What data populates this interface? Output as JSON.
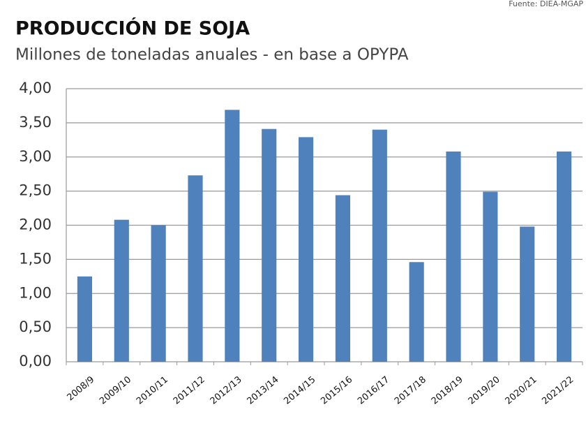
{
  "chart_data": {
    "type": "bar",
    "title": "PRODUCCIÓN DE SOJA",
    "subtitle": "Millones de toneladas anuales - en base a OPYPA",
    "source": "Fuente: DIEA-MGAP",
    "categories": [
      "2008/9",
      "2009/10",
      "2010/11",
      "2011/12",
      "2012/13",
      "2013/14",
      "2014/15",
      "2015/16",
      "2016/17",
      "2017/18",
      "2018/19",
      "2019/20",
      "2020/21",
      "2021/22"
    ],
    "values": [
      1.25,
      2.08,
      2.0,
      2.73,
      3.69,
      3.41,
      3.29,
      2.44,
      3.4,
      1.46,
      3.08,
      2.49,
      1.98,
      3.08
    ],
    "color": "#4f81bd",
    "ylim": [
      0,
      4
    ],
    "yticks": [
      {
        "value": 0,
        "label": "0,00"
      },
      {
        "value": 0.5,
        "label": "0,50"
      },
      {
        "value": 1,
        "label": "1,00"
      },
      {
        "value": 1.5,
        "label": "1,50"
      },
      {
        "value": 2,
        "label": "2,00"
      },
      {
        "value": 2.5,
        "label": "2,50"
      },
      {
        "value": 3,
        "label": "3,00"
      },
      {
        "value": 3.5,
        "label": "3,50"
      },
      {
        "value": 4,
        "label": "4,00"
      }
    ],
    "grid": true
  }
}
